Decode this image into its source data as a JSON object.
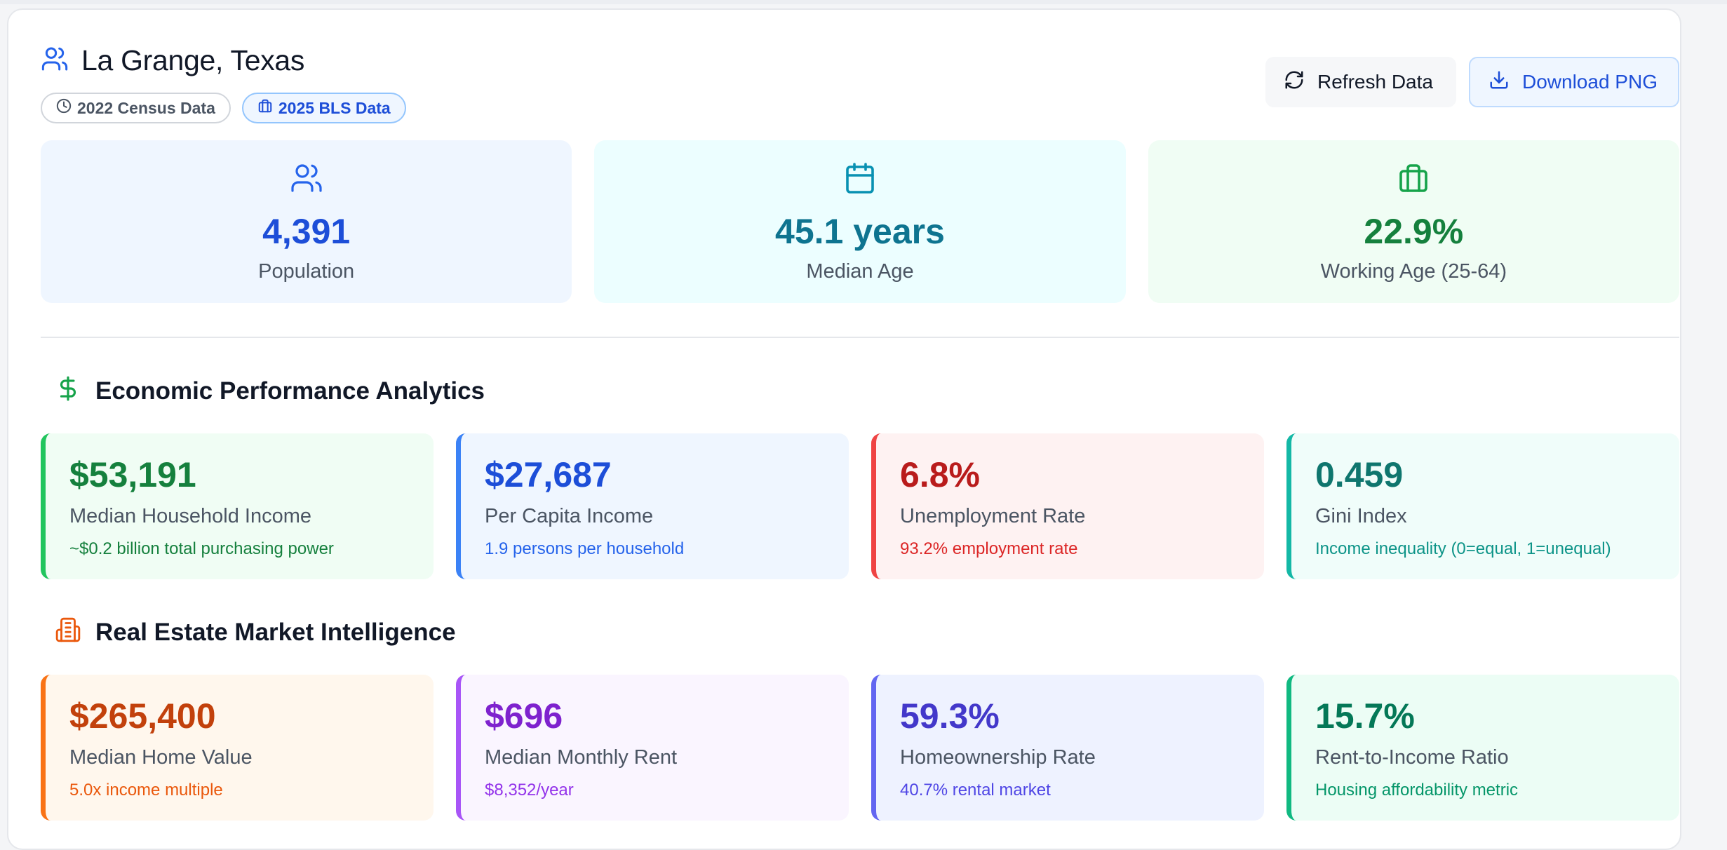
{
  "header": {
    "title": "La Grange, Texas",
    "badges": [
      {
        "label": "2022 Census Data",
        "icon": "clock-icon"
      },
      {
        "label": "2025 BLS Data",
        "icon": "briefcase-icon"
      }
    ],
    "actions": {
      "refresh_label": "Refresh Data",
      "download_label": "Download PNG"
    }
  },
  "stats": [
    {
      "icon": "users-icon",
      "value": "4,391",
      "label": "Population"
    },
    {
      "icon": "calendar-icon",
      "value": "45.1 years",
      "label": "Median Age"
    },
    {
      "icon": "briefcase-icon",
      "value": "22.9%",
      "label": "Working Age (25-64)"
    }
  ],
  "economic": {
    "title": "Economic Performance Analytics",
    "icon": "dollar-icon",
    "metrics": [
      {
        "value": "$53,191",
        "label": "Median Household Income",
        "sub": "~$0.2 billion total purchasing power",
        "color": "#15803d"
      },
      {
        "value": "$27,687",
        "label": "Per Capita Income",
        "sub": "1.9 persons per household",
        "color": "#1d4ed8"
      },
      {
        "value": "6.8%",
        "label": "Unemployment Rate",
        "sub": "93.2% employment rate",
        "color": "#b91c1c"
      },
      {
        "value": "0.459",
        "label": "Gini Index",
        "sub": "Income inequality (0=equal, 1=unequal)",
        "color": "#0f766e"
      }
    ]
  },
  "real_estate": {
    "title": "Real Estate Market Intelligence",
    "icon": "building-icon",
    "metrics": [
      {
        "value": "$265,400",
        "label": "Median Home Value",
        "sub": "5.0x income multiple",
        "color": "#c2410c"
      },
      {
        "value": "$696",
        "label": "Median Monthly Rent",
        "sub": "$8,352/year",
        "color": "#7e22ce"
      },
      {
        "value": "59.3%",
        "label": "Homeownership Rate",
        "sub": "40.7% rental market",
        "color": "#4338ca"
      },
      {
        "value": "15.7%",
        "label": "Rent-to-Income Ratio",
        "sub": "Housing affordability metric",
        "color": "#047857"
      }
    ]
  }
}
